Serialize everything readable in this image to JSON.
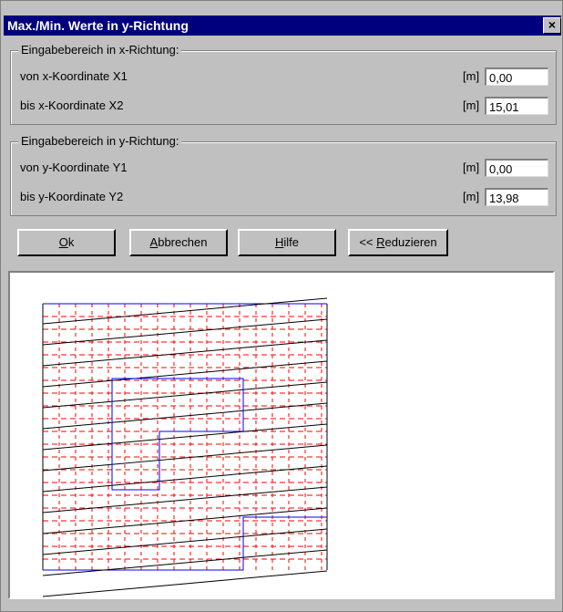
{
  "window": {
    "title": "Max./Min. Werte in y-Richtung",
    "close_glyph": "×"
  },
  "group_x": {
    "legend": "Eingabebereich in x-Richtung:",
    "rows": [
      {
        "label": "von x-Koordinate X1",
        "unit": "[m]",
        "value": "0,00"
      },
      {
        "label": "bis x-Koordinate X2",
        "unit": "[m]",
        "value": "15,01"
      }
    ]
  },
  "group_y": {
    "legend": "Eingabebereich in y-Richtung:",
    "rows": [
      {
        "label": "von y-Koordinate Y1",
        "unit": "[m]",
        "value": "0,00"
      },
      {
        "label": "bis y-Koordinate Y2",
        "unit": "[m]",
        "value": "13,98"
      }
    ]
  },
  "buttons": {
    "ok": {
      "mnemonic": "O",
      "rest": "k"
    },
    "cancel": {
      "mnemonic": "A",
      "rest": "bbrechen"
    },
    "help": {
      "mnemonic": "H",
      "rest": "ilfe"
    },
    "reduce": {
      "prefix": "<< ",
      "mnemonic": "R",
      "rest": "eduzieren"
    }
  },
  "preview": {
    "outline_color": "#0000ff",
    "strip_color": "#000000",
    "grid_color": "#ff0000"
  }
}
